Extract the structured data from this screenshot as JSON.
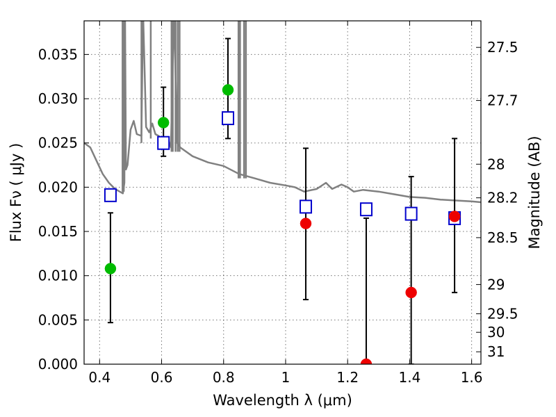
{
  "chart_data": {
    "type": "scatter",
    "title": "",
    "xlabel": "Wavelength  λ (μm)",
    "ylabel": "Flux  Fν  ( μJy )",
    "ylabel_right": "Magnitude (AB)",
    "xlim": [
      0.35,
      1.63
    ],
    "ylim": [
      0.0,
      0.0388
    ],
    "grid": true,
    "x_ticks": [
      0.4,
      0.6,
      0.8,
      1.0,
      1.2,
      1.4,
      1.6
    ],
    "x_tick_labels": [
      "0.4",
      "0.6",
      "0.8",
      "1",
      "1.2",
      "1.4",
      "1.6"
    ],
    "y_ticks": [
      0.0,
      0.005,
      0.01,
      0.015,
      0.02,
      0.025,
      0.03,
      0.035
    ],
    "y_tick_labels": [
      "0.000",
      "0.005",
      "0.010",
      "0.015",
      "0.020",
      "0.025",
      "0.030",
      "0.035"
    ],
    "right_ticks": [
      {
        "label": "27.5",
        "flux": 0.0358
      },
      {
        "label": "27.7",
        "flux": 0.0298
      },
      {
        "label": "28",
        "flux": 0.0226
      },
      {
        "label": "28.2",
        "flux": 0.0188
      },
      {
        "label": "28.5",
        "flux": 0.0143
      },
      {
        "label": "29",
        "flux": 0.009
      },
      {
        "label": "29.5",
        "flux": 0.0057
      },
      {
        "label": "30",
        "flux": 0.0036
      },
      {
        "label": "31",
        "flux": 0.0014
      }
    ],
    "series": [
      {
        "kind": "line",
        "color": "#808080",
        "x": [
          0.35,
          0.37,
          0.39,
          0.41,
          0.43,
          0.45,
          0.465,
          0.475,
          0.48,
          0.482,
          0.485,
          0.49,
          0.5,
          0.51,
          0.52,
          0.535,
          0.54,
          0.55,
          0.56,
          0.57,
          0.58,
          0.59,
          0.6,
          0.62,
          0.63,
          0.64,
          0.65,
          0.66,
          0.7,
          0.75,
          0.8,
          0.85,
          0.9,
          0.95,
          1.0,
          1.03,
          1.06,
          1.1,
          1.13,
          1.15,
          1.18,
          1.2,
          1.22,
          1.25,
          1.3,
          1.35,
          1.4,
          1.45,
          1.5,
          1.55,
          1.6,
          1.63
        ],
        "y": [
          0.025,
          0.0245,
          0.023,
          0.0215,
          0.0205,
          0.0198,
          0.0195,
          0.0193,
          0.0205,
          0.04,
          0.022,
          0.0225,
          0.0265,
          0.0275,
          0.026,
          0.0258,
          0.04,
          0.0268,
          0.0262,
          0.0272,
          0.026,
          0.0258,
          0.0255,
          0.0255,
          0.0245,
          0.04,
          0.025,
          0.0245,
          0.0235,
          0.0228,
          0.0224,
          0.0215,
          0.021,
          0.0205,
          0.0202,
          0.02,
          0.0195,
          0.0198,
          0.0205,
          0.0198,
          0.0203,
          0.02,
          0.0195,
          0.0197,
          0.0195,
          0.0192,
          0.0189,
          0.0188,
          0.0186,
          0.0185,
          0.0184,
          0.0183
        ],
        "spikes": [
          {
            "x": 0.474,
            "y_min": 0.0195,
            "y_max": 0.0388
          },
          {
            "x": 0.478,
            "y_min": 0.0195,
            "y_max": 0.0388
          },
          {
            "x": 0.535,
            "y_min": 0.025,
            "y_max": 0.0388
          },
          {
            "x": 0.565,
            "y_min": 0.0255,
            "y_max": 0.0388
          },
          {
            "x": 0.632,
            "y_min": 0.024,
            "y_max": 0.0388
          },
          {
            "x": 0.636,
            "y_min": 0.024,
            "y_max": 0.0388
          },
          {
            "x": 0.645,
            "y_min": 0.024,
            "y_max": 0.0388
          },
          {
            "x": 0.652,
            "y_min": 0.024,
            "y_max": 0.0388
          },
          {
            "x": 0.658,
            "y_min": 0.024,
            "y_max": 0.0388
          },
          {
            "x": 0.848,
            "y_min": 0.021,
            "y_max": 0.0388
          },
          {
            "x": 0.853,
            "y_min": 0.021,
            "y_max": 0.0388
          },
          {
            "x": 0.866,
            "y_min": 0.021,
            "y_max": 0.0388
          },
          {
            "x": 0.872,
            "y_min": 0.021,
            "y_max": 0.0388
          }
        ]
      },
      {
        "kind": "errorbar",
        "color": "#000000",
        "points": [
          {
            "x": 0.435,
            "y_low": 0.0047,
            "y_high": 0.0171
          },
          {
            "x": 0.606,
            "y_low": 0.0235,
            "y_high": 0.0313
          },
          {
            "x": 0.814,
            "y_low": 0.0255,
            "y_high": 0.0368
          },
          {
            "x": 1.065,
            "y_low": 0.0073,
            "y_high": 0.0244
          },
          {
            "x": 1.26,
            "y_low": 0.0,
            "y_high": 0.0165
          },
          {
            "x": 1.405,
            "y_low": 0.0,
            "y_high": 0.0212
          },
          {
            "x": 1.545,
            "y_low": 0.0081,
            "y_high": 0.0255
          }
        ]
      },
      {
        "kind": "square",
        "color": "#0000cc",
        "x": [
          0.435,
          0.606,
          0.814,
          1.065,
          1.26,
          1.405,
          1.545
        ],
        "y": [
          0.0191,
          0.025,
          0.0278,
          0.0178,
          0.0175,
          0.017,
          0.0165
        ]
      },
      {
        "kind": "circle",
        "color": "#00bb00",
        "x": [
          0.435,
          0.606,
          0.814
        ],
        "y": [
          0.0108,
          0.0273,
          0.031
        ]
      },
      {
        "kind": "circle",
        "color": "#ee0000",
        "x": [
          1.065,
          1.26,
          1.405,
          1.545
        ],
        "y": [
          0.0159,
          0.0,
          0.0081,
          0.0167
        ]
      }
    ]
  }
}
